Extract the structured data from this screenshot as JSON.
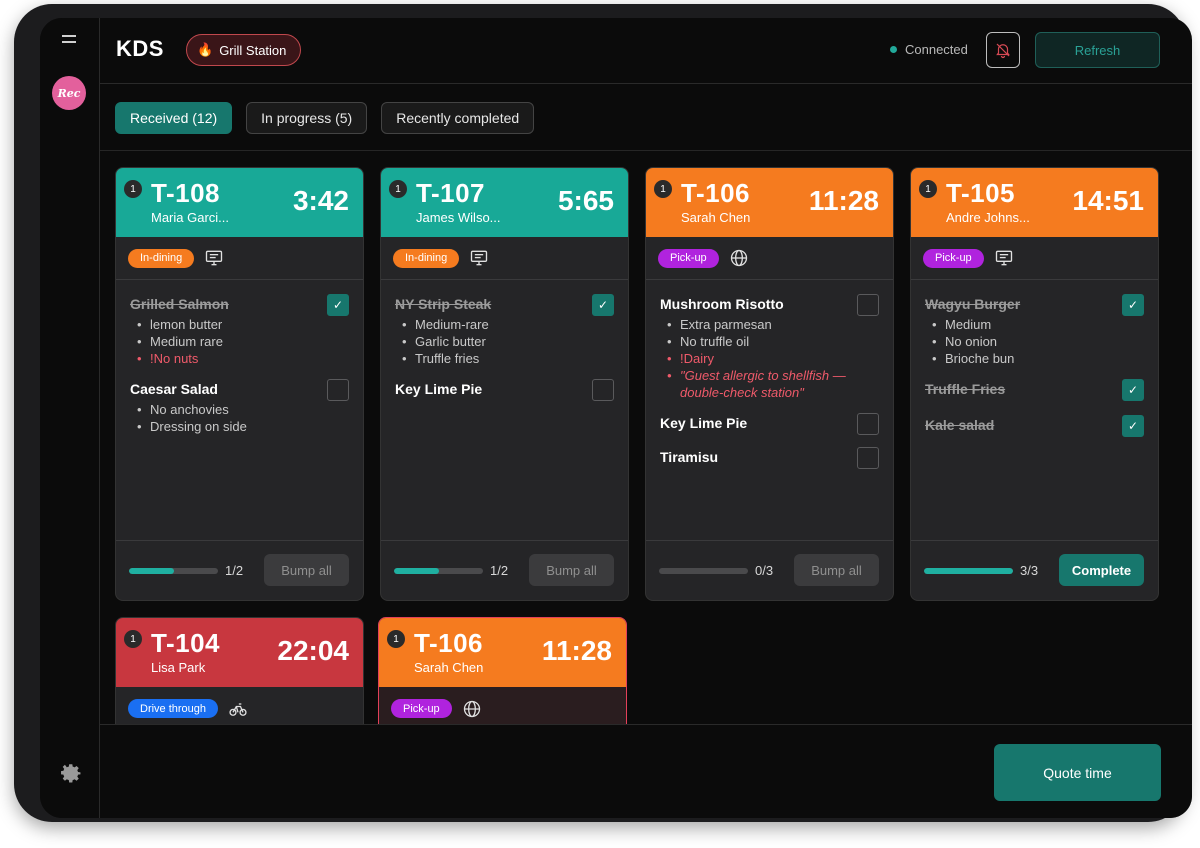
{
  "header": {
    "title": "KDS",
    "station": "Grill Station",
    "station_icon": "flame-icon",
    "connection": "Connected",
    "connection_color": "#22a99a",
    "refresh_label": "Refresh"
  },
  "sidebar": {
    "logo_text": "Rec"
  },
  "tabs": [
    {
      "label": "Received (12)",
      "active": true
    },
    {
      "label": "In progress (5)",
      "active": false
    },
    {
      "label": "Recently completed",
      "active": false
    }
  ],
  "colors": {
    "teal": "#18a997",
    "orange": "#f57b1f",
    "red": "#c8373f",
    "accent": "#17776d"
  },
  "orders": [
    {
      "seat": "1",
      "ticket": "T-108",
      "guest": "Maria Garci...",
      "timer": "3:42",
      "type": "In-dining",
      "type_icon": "monitor-icon",
      "items": [
        {
          "name": "Grilled Salmon",
          "done": true,
          "mods": [
            "lemon butter",
            "Medium rare"
          ],
          "alerts": [
            "!No nuts"
          ],
          "notes": []
        },
        {
          "name": "Caesar Salad",
          "done": false,
          "mods": [
            "No anchovies",
            "Dressing on side"
          ],
          "alerts": [],
          "notes": []
        }
      ],
      "progress": "1/2",
      "progress_fraction": 0.5,
      "action": "Bump all"
    },
    {
      "seat": "1",
      "ticket": "T-107",
      "guest": "James Wilso...",
      "timer": "5:65",
      "type": "In-dining",
      "type_icon": "monitor-icon",
      "items": [
        {
          "name": "NY Strip Steak",
          "done": true,
          "mods": [
            "Medium-rare",
            "Garlic butter",
            "Truffle fries"
          ],
          "alerts": [],
          "notes": []
        },
        {
          "name": "Key Lime Pie",
          "done": false,
          "mods": [],
          "alerts": [],
          "notes": []
        }
      ],
      "progress": "1/2",
      "progress_fraction": 0.5,
      "action": "Bump all"
    },
    {
      "seat": "1",
      "ticket": "T-106",
      "guest": "Sarah Chen",
      "timer": "11:28",
      "type": "Pick-up",
      "type_icon": "globe-icon",
      "items": [
        {
          "name": "Mushroom Risotto",
          "done": false,
          "mods": [
            "Extra parmesan",
            "No truffle oil"
          ],
          "alerts": [
            "!Dairy"
          ],
          "notes": [
            "\"Guest allergic to shellfish — double-check station\""
          ]
        },
        {
          "name": "Key Lime Pie",
          "done": false,
          "mods": [],
          "alerts": [],
          "notes": []
        },
        {
          "name": "Tiramisu",
          "done": false,
          "mods": [],
          "alerts": [],
          "notes": []
        }
      ],
      "progress": "0/3",
      "progress_fraction": 0,
      "action": "Bump all"
    },
    {
      "seat": "1",
      "ticket": "T-105",
      "guest": "Andre Johns...",
      "timer": "14:51",
      "type": "Pick-up",
      "type_icon": "monitor-icon",
      "items": [
        {
          "name": "Wagyu Burger",
          "done": true,
          "mods": [
            "Medium",
            "No onion",
            "Brioche bun"
          ],
          "alerts": [],
          "notes": []
        },
        {
          "name": "Truffle Fries",
          "done": true,
          "mods": [],
          "alerts": [],
          "notes": []
        },
        {
          "name": "Kale salad",
          "done": true,
          "mods": [],
          "alerts": [],
          "notes": []
        }
      ],
      "progress": "3/3",
      "progress_fraction": 1,
      "action": "Complete"
    },
    {
      "seat": "1",
      "ticket": "T-104",
      "guest": "Lisa Park",
      "timer": "22:04",
      "type": "Drive through",
      "type_icon": "bicycle-icon",
      "items": []
    },
    {
      "seat": "1",
      "ticket": "T-106",
      "guest": "Sarah Chen",
      "timer": "11:28",
      "type": "Pick-up",
      "type_icon": "globe-icon",
      "items": []
    }
  ],
  "quote_label": "Quote time"
}
